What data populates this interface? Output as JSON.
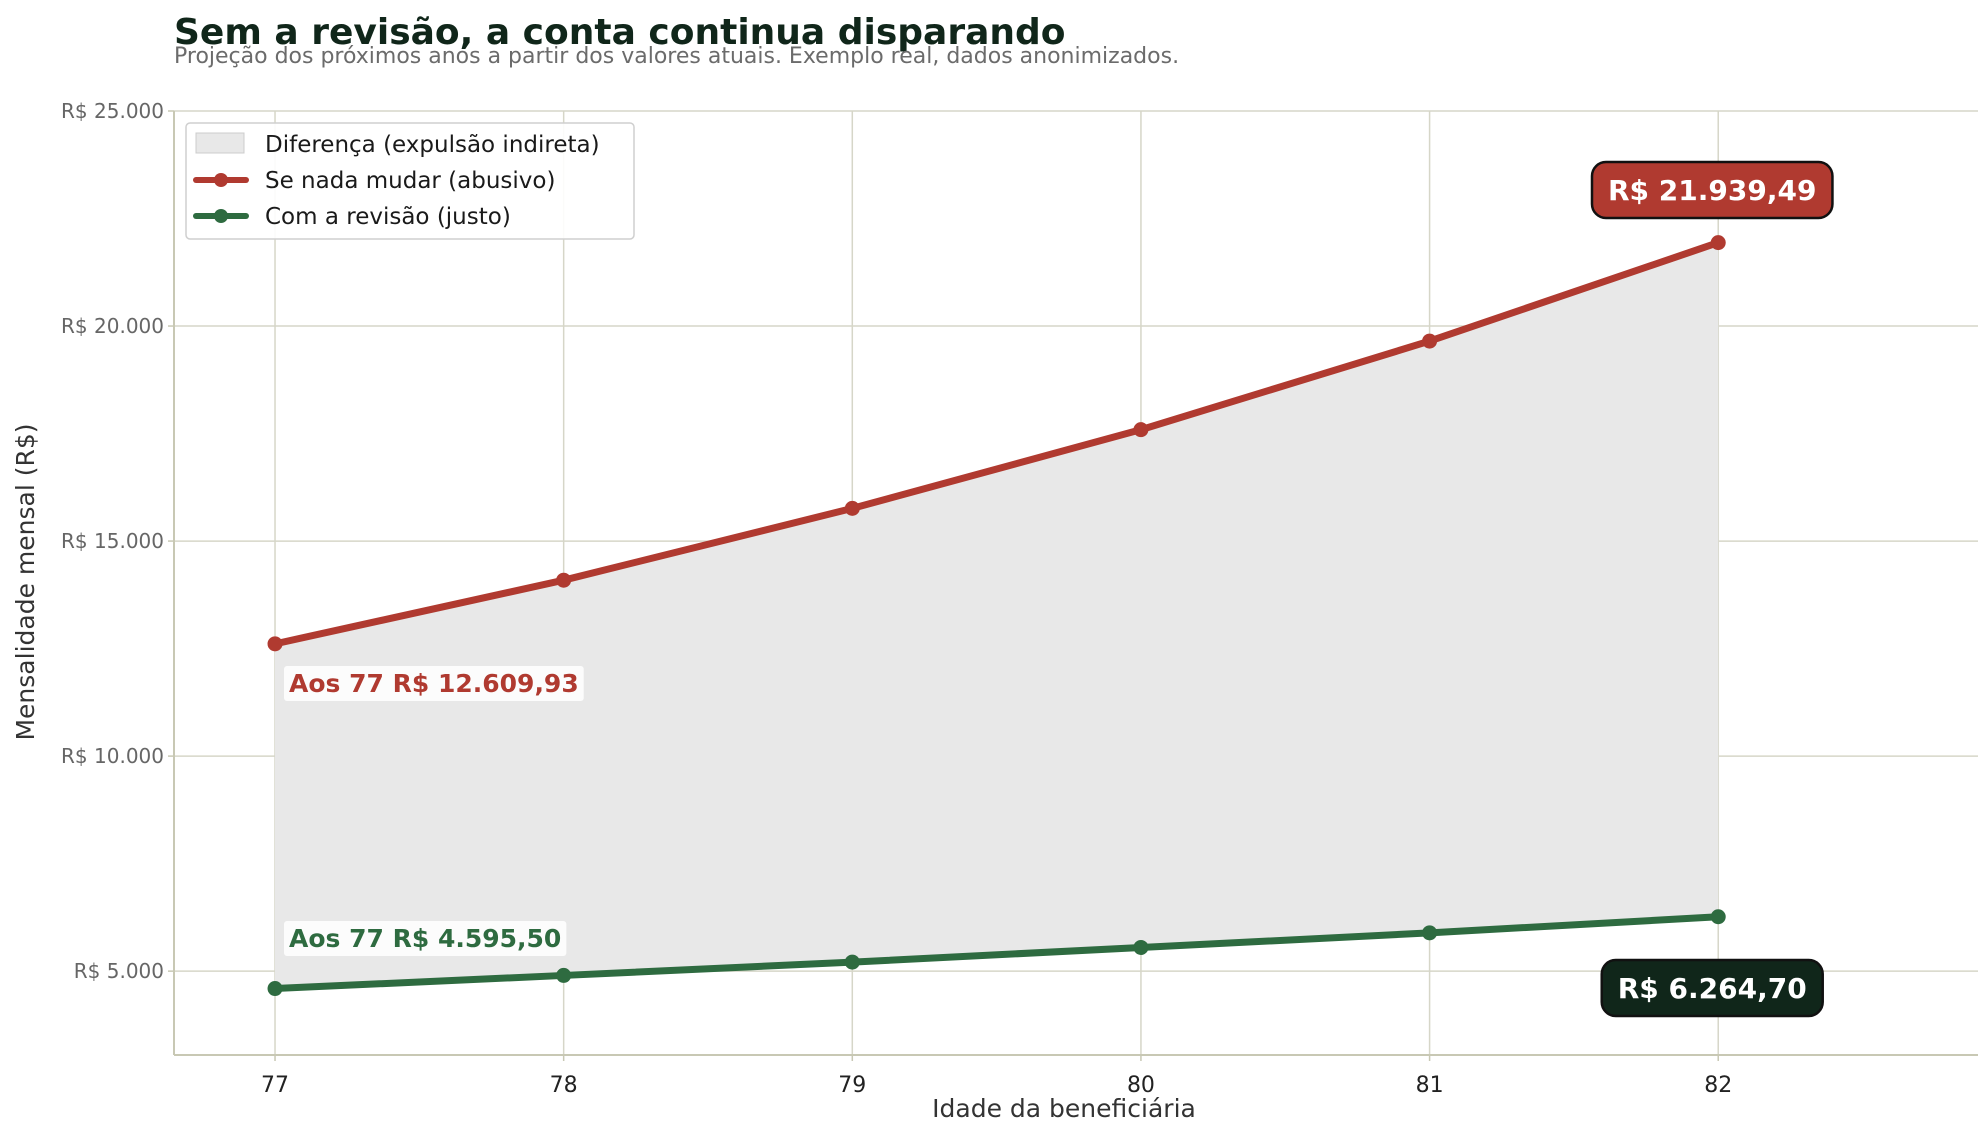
{
  "chart_data": {
    "type": "line",
    "title": "Sem a revisão, a conta continua disparando",
    "subtitle": "Projeção dos próximos anos a partir dos valores atuais. Exemplo real, dados anonimizados.",
    "xlabel": "Idade da beneficiária",
    "ylabel": "Mensalidade mensal (R$)",
    "x": [
      77,
      78,
      79,
      80,
      81,
      82
    ],
    "xlim": [
      76.65,
      82.9
    ],
    "ylim": [
      3050,
      25000
    ],
    "yticks": [
      5000,
      10000,
      15000,
      20000,
      25000
    ],
    "ytick_labels": [
      "R$ 5.000",
      "R$ 10.000",
      "R$ 15.000",
      "R$ 20.000",
      "R$ 25.000"
    ],
    "grid": true,
    "legend_position": "top-left",
    "fill_between": {
      "name": "Diferença (expulsão indireta)",
      "color": "#e8e8e8"
    },
    "series": [
      {
        "name": "Se nada mudar (abusivo)",
        "color": "#b03a30",
        "values": [
          12609.93,
          14090,
          15760,
          17590,
          19650,
          21939.49
        ],
        "start_label": "Aos 77 R$ 12.609,93",
        "end_label": "R$ 21.939,49"
      },
      {
        "name": "Com a revisão (justo)",
        "color": "#2e6b40",
        "values": [
          4595.5,
          4900,
          5210,
          5550,
          5890,
          6264.7
        ],
        "start_label": "Aos 77 R$ 4.595,50",
        "end_label": "R$ 6.264,70"
      }
    ],
    "colors": {
      "grid": "#d6d6c8",
      "axis": "#c8c8b4",
      "end_label_dark": "#10261a"
    }
  }
}
